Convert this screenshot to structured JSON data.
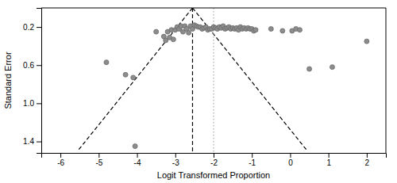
{
  "chart_data": {
    "type": "scatter",
    "xlabel": "Logit Transformed Proportion",
    "ylabel": "Standard Error",
    "xlim": [
      -6.5,
      2.5
    ],
    "ylim": [
      1.52,
      0.0
    ],
    "xticks": [
      -6,
      -5,
      -4,
      -3,
      -2,
      -1,
      0,
      1,
      2
    ],
    "yticks": [
      0.2,
      0.6,
      {
        "value": 1.0,
        "label": "1.0"
      },
      1.4
    ],
    "grid": false,
    "series": [
      {
        "type": "scatter",
        "marker": "circle",
        "color": "#8c8c8c",
        "x": [
          -4.8,
          -4.3,
          -4.1,
          -4.05,
          -3.5,
          -3.3,
          -3.25,
          -3.2,
          -3.15,
          -3.1,
          -3.05,
          -3.0,
          -2.95,
          -2.9,
          -2.85,
          -2.8,
          -2.75,
          -2.7,
          -2.65,
          -2.6,
          -2.55,
          -2.5,
          -2.45,
          -2.4,
          -2.35,
          -2.3,
          -2.25,
          -2.2,
          -2.15,
          -2.1,
          -2.05,
          -2.0,
          -1.95,
          -1.9,
          -1.85,
          -1.8,
          -1.75,
          -1.7,
          -1.65,
          -1.6,
          -1.55,
          -1.5,
          -1.45,
          -1.4,
          -1.35,
          -1.3,
          -1.25,
          -1.2,
          -1.15,
          -1.1,
          -1.05,
          -1.0,
          -0.95,
          -0.9,
          -0.5,
          -0.2,
          0.05,
          0.15,
          0.25,
          0.5,
          1.1,
          2.0
        ],
        "values": [
          0.57,
          0.7,
          0.73,
          1.45,
          0.25,
          0.3,
          0.34,
          0.25,
          0.31,
          0.23,
          0.33,
          0.23,
          0.2,
          0.22,
          0.19,
          0.25,
          0.19,
          0.22,
          0.26,
          0.19,
          0.22,
          0.18,
          0.19,
          0.2,
          0.2,
          0.22,
          0.21,
          0.2,
          0.23,
          0.22,
          0.22,
          0.2,
          0.21,
          0.22,
          0.2,
          0.21,
          0.19,
          0.22,
          0.21,
          0.2,
          0.22,
          0.21,
          0.22,
          0.21,
          0.23,
          0.2,
          0.22,
          0.21,
          0.22,
          0.21,
          0.22,
          0.22,
          0.24,
          0.23,
          0.22,
          0.24,
          0.24,
          0.22,
          0.23,
          0.64,
          0.62,
          0.35
        ]
      },
      {
        "type": "line",
        "line_style": "dashed",
        "color": "black",
        "x": [
          -2.55,
          -5.55
        ],
        "values": [
          0.0,
          1.5
        ]
      },
      {
        "type": "line",
        "line_style": "dashed",
        "color": "black",
        "x": [
          -2.55,
          0.45
        ],
        "values": [
          0.0,
          1.5
        ]
      },
      {
        "type": "vline",
        "line_style": "dashed",
        "color": "black",
        "x": [
          -2.55
        ]
      },
      {
        "type": "vline",
        "line_style": "dotted",
        "color": "#aaaaaa",
        "x": [
          -2.0
        ]
      }
    ]
  }
}
